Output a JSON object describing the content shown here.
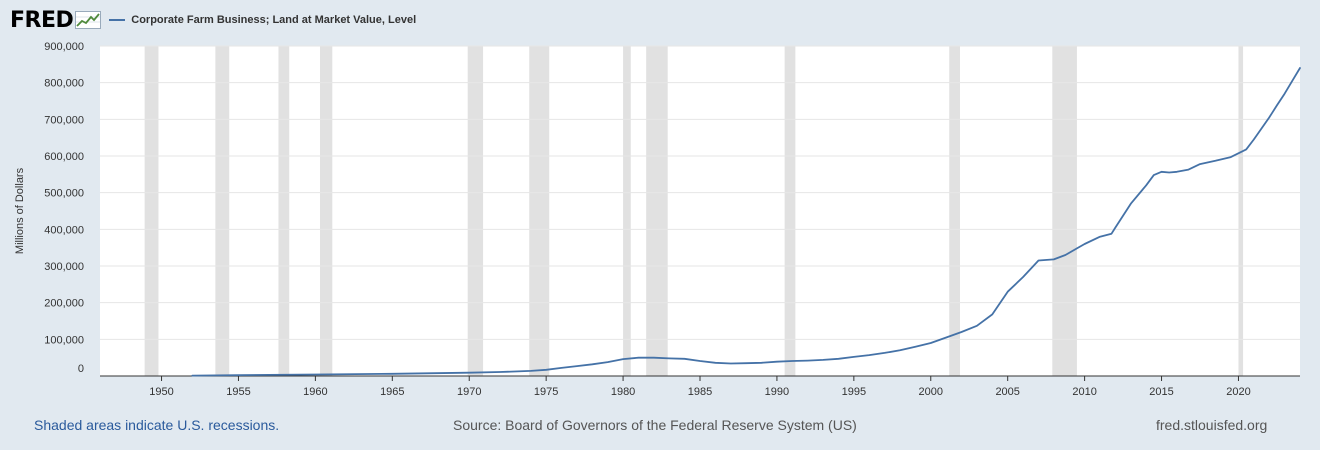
{
  "header": {
    "logo_text": "FRED",
    "legend_label": "Corporate Farm Business; Land at Market Value, Level",
    "series_color": "#4572a7"
  },
  "footer": {
    "recession_note": "Shaded areas indicate U.S. recessions.",
    "source": "Source: Board of Governors of the Federal Reserve System (US)",
    "site": "fred.stlouisfed.org"
  },
  "chart_data": {
    "type": "line",
    "title": "Corporate Farm Business; Land at Market Value, Level",
    "xlabel": "",
    "ylabel": "Millions of Dollars",
    "xlim": [
      1946,
      2024
    ],
    "ylim": [
      0,
      900000
    ],
    "y_ticks": [
      0,
      100000,
      200000,
      300000,
      400000,
      500000,
      600000,
      700000,
      800000,
      900000
    ],
    "y_tick_labels": [
      "0",
      "100,000",
      "200,000",
      "300,000",
      "400,000",
      "500,000",
      "600,000",
      "700,000",
      "800,000",
      "900,000"
    ],
    "x_ticks": [
      1950,
      1955,
      1960,
      1965,
      1970,
      1975,
      1980,
      1985,
      1990,
      1995,
      2000,
      2005,
      2010,
      2015,
      2020
    ],
    "x_tick_labels": [
      "1950",
      "1955",
      "1960",
      "1965",
      "1970",
      "1975",
      "1980",
      "1985",
      "1990",
      "1995",
      "2000",
      "2005",
      "2010",
      "2015",
      "2020"
    ],
    "recessions": [
      [
        1948.9,
        1949.8
      ],
      [
        1953.5,
        1954.4
      ],
      [
        1957.6,
        1958.3
      ],
      [
        1960.3,
        1961.1
      ],
      [
        1969.9,
        1970.9
      ],
      [
        1973.9,
        1975.2
      ],
      [
        1980.0,
        1980.5
      ],
      [
        1981.5,
        1982.9
      ],
      [
        1990.5,
        1991.2
      ],
      [
        2001.2,
        2001.9
      ],
      [
        2007.9,
        2009.5
      ],
      [
        2020.0,
        2020.3
      ]
    ],
    "series": [
      {
        "name": "Corporate Farm Business; Land at Market Value, Level",
        "x": [
          1952,
          1955,
          1960,
          1965,
          1970,
          1972,
          1974,
          1975,
          1976,
          1977,
          1978,
          1979,
          1980,
          1981,
          1982,
          1983,
          1984,
          1985,
          1986,
          1987,
          1988,
          1989,
          1990,
          1991,
          1992,
          1993,
          1994,
          1995,
          1996,
          1997,
          1998,
          1999,
          2000,
          2001,
          2002,
          2003,
          2004,
          2005,
          2006,
          2007,
          2008,
          2008.75,
          2009.5,
          2010,
          2011,
          2011.75,
          2012,
          2013,
          2014,
          2014.5,
          2015,
          2015.5,
          2016,
          2016.75,
          2017.5,
          2018.5,
          2019.5,
          2020.5,
          2021,
          2021.5,
          2022,
          2022.5,
          2023,
          2023.5,
          2024
        ],
        "values": [
          1000,
          2500,
          4000,
          6000,
          9000,
          11000,
          14000,
          17000,
          22000,
          27000,
          32000,
          38000,
          46000,
          50000,
          50000,
          48000,
          47000,
          41000,
          36000,
          34000,
          35000,
          36000,
          39000,
          41000,
          42000,
          44000,
          47000,
          52000,
          57000,
          63000,
          70000,
          80000,
          90000,
          105000,
          120000,
          137000,
          168000,
          230000,
          270000,
          315000,
          318000,
          330000,
          348000,
          360000,
          380000,
          388000,
          405000,
          470000,
          520000,
          548000,
          557000,
          555000,
          557000,
          563000,
          578000,
          587000,
          597000,
          618000,
          645000,
          675000,
          705000,
          738000,
          770000,
          805000,
          840000
        ]
      }
    ]
  }
}
